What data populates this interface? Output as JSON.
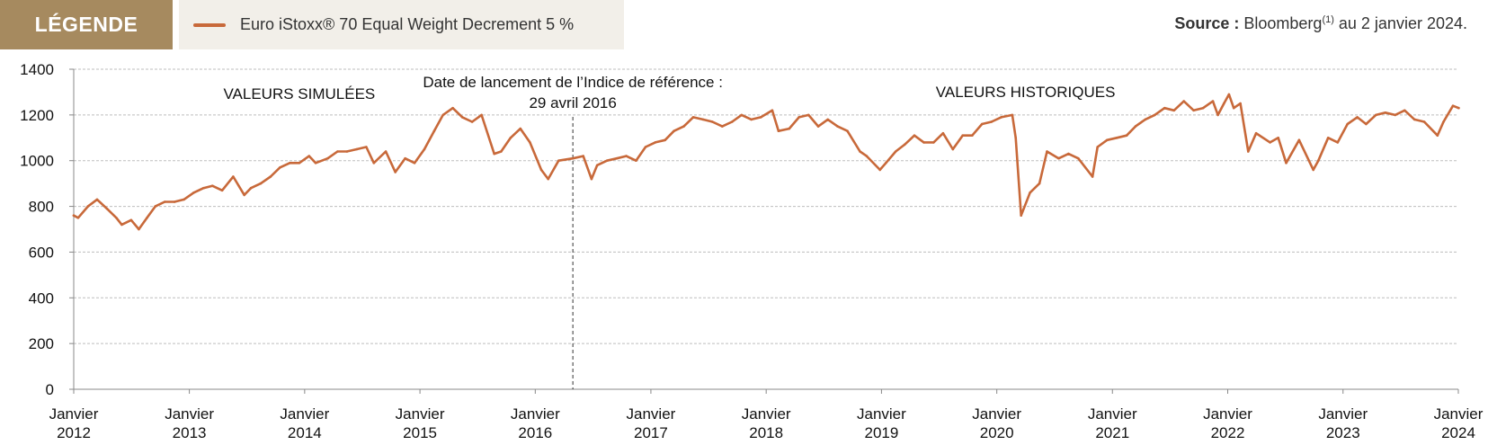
{
  "legend": {
    "title": "LÉGENDE",
    "entry": "Euro iStoxx® 70 Equal Weight Decrement 5 %"
  },
  "source": {
    "label": "Source :",
    "text1": " Bloomberg",
    "sup": "(1)",
    "text2": " au 2 janvier 2024."
  },
  "colors": {
    "series": "#c8693a",
    "legend_bg": "#a68a5f",
    "legend_entry_bg": "#f2efe9"
  },
  "chart_data": {
    "type": "line",
    "title": "",
    "xlabel": "",
    "ylabel": "",
    "ylim": [
      0,
      1400
    ],
    "yticks": [
      0,
      200,
      400,
      600,
      800,
      1000,
      1200,
      1400
    ],
    "grid": true,
    "legend_position": "top-left",
    "xticks": [
      {
        "year": 2012,
        "label1": "Janvier",
        "label2": "2012"
      },
      {
        "year": 2013,
        "label1": "Janvier",
        "label2": "2013"
      },
      {
        "year": 2014,
        "label1": "Janvier",
        "label2": "2014"
      },
      {
        "year": 2015,
        "label1": "Janvier",
        "label2": "2015"
      },
      {
        "year": 2016,
        "label1": "Janvier",
        "label2": "2016"
      },
      {
        "year": 2017,
        "label1": "Janvier",
        "label2": "2017"
      },
      {
        "year": 2018,
        "label1": "Janvier",
        "label2": "2018"
      },
      {
        "year": 2019,
        "label1": "Janvier",
        "label2": "2019"
      },
      {
        "year": 2020,
        "label1": "Janvier",
        "label2": "2020"
      },
      {
        "year": 2021,
        "label1": "Janvier",
        "label2": "2021"
      },
      {
        "year": 2022,
        "label1": "Janvier",
        "label2": "2022"
      },
      {
        "year": 2023,
        "label1": "Janvier",
        "label2": "2023"
      },
      {
        "year": 2024,
        "label1": "Janvier",
        "label2": "2024"
      }
    ],
    "annotations": {
      "simulated": "VALEURS SIMULÉES",
      "historical": "VALEURS HISTORIQUES",
      "launch_line1": "Date de lancement de l’Indice de référence :",
      "launch_line2": "29 avril  2016",
      "launch_date": "2016-04-29"
    },
    "series": [
      {
        "name": "Euro iStoxx® 70 Equal Weight Decrement 5 %",
        "points": [
          [
            "2012-01-01",
            760
          ],
          [
            "2012-01-15",
            750
          ],
          [
            "2012-02-15",
            800
          ],
          [
            "2012-03-15",
            830
          ],
          [
            "2012-04-15",
            790
          ],
          [
            "2012-05-15",
            750
          ],
          [
            "2012-06-01",
            720
          ],
          [
            "2012-07-01",
            740
          ],
          [
            "2012-07-25",
            700
          ],
          [
            "2012-08-20",
            750
          ],
          [
            "2012-09-15",
            800
          ],
          [
            "2012-10-15",
            820
          ],
          [
            "2012-11-15",
            820
          ],
          [
            "2012-12-15",
            830
          ],
          [
            "2013-01-15",
            860
          ],
          [
            "2013-02-15",
            880
          ],
          [
            "2013-03-15",
            890
          ],
          [
            "2013-04-15",
            870
          ],
          [
            "2013-05-20",
            930
          ],
          [
            "2013-06-24",
            850
          ],
          [
            "2013-07-15",
            880
          ],
          [
            "2013-08-15",
            900
          ],
          [
            "2013-09-15",
            930
          ],
          [
            "2013-10-15",
            970
          ],
          [
            "2013-11-15",
            990
          ],
          [
            "2013-12-15",
            990
          ],
          [
            "2014-01-15",
            1020
          ],
          [
            "2014-02-05",
            990
          ],
          [
            "2014-03-15",
            1010
          ],
          [
            "2014-04-15",
            1040
          ],
          [
            "2014-05-15",
            1040
          ],
          [
            "2014-06-15",
            1050
          ],
          [
            "2014-07-15",
            1060
          ],
          [
            "2014-08-08",
            990
          ],
          [
            "2014-09-15",
            1040
          ],
          [
            "2014-10-15",
            950
          ],
          [
            "2014-11-15",
            1010
          ],
          [
            "2014-12-15",
            990
          ],
          [
            "2015-01-15",
            1050
          ],
          [
            "2015-02-15",
            1130
          ],
          [
            "2015-03-15",
            1200
          ],
          [
            "2015-04-15",
            1230
          ],
          [
            "2015-05-15",
            1190
          ],
          [
            "2015-06-15",
            1170
          ],
          [
            "2015-07-15",
            1200
          ],
          [
            "2015-08-24",
            1030
          ],
          [
            "2015-09-15",
            1040
          ],
          [
            "2015-10-15",
            1100
          ],
          [
            "2015-11-15",
            1140
          ],
          [
            "2015-12-15",
            1080
          ],
          [
            "2016-01-20",
            960
          ],
          [
            "2016-02-11",
            920
          ],
          [
            "2016-03-15",
            1000
          ],
          [
            "2016-04-29",
            1010
          ],
          [
            "2016-06-01",
            1020
          ],
          [
            "2016-06-27",
            920
          ],
          [
            "2016-07-15",
            980
          ],
          [
            "2016-08-15",
            1000
          ],
          [
            "2016-09-15",
            1010
          ],
          [
            "2016-10-15",
            1020
          ],
          [
            "2016-11-15",
            1000
          ],
          [
            "2016-12-15",
            1060
          ],
          [
            "2017-01-15",
            1080
          ],
          [
            "2017-02-15",
            1090
          ],
          [
            "2017-03-15",
            1130
          ],
          [
            "2017-04-15",
            1150
          ],
          [
            "2017-05-15",
            1190
          ],
          [
            "2017-06-15",
            1180
          ],
          [
            "2017-07-15",
            1170
          ],
          [
            "2017-08-15",
            1150
          ],
          [
            "2017-09-15",
            1170
          ],
          [
            "2017-10-15",
            1200
          ],
          [
            "2017-11-15",
            1180
          ],
          [
            "2017-12-15",
            1190
          ],
          [
            "2018-01-20",
            1220
          ],
          [
            "2018-02-09",
            1130
          ],
          [
            "2018-03-15",
            1140
          ],
          [
            "2018-04-15",
            1190
          ],
          [
            "2018-05-15",
            1200
          ],
          [
            "2018-06-15",
            1150
          ],
          [
            "2018-07-15",
            1180
          ],
          [
            "2018-08-15",
            1150
          ],
          [
            "2018-09-15",
            1130
          ],
          [
            "2018-10-25",
            1040
          ],
          [
            "2018-11-15",
            1020
          ],
          [
            "2018-12-27",
            960
          ],
          [
            "2019-01-15",
            990
          ],
          [
            "2019-02-15",
            1040
          ],
          [
            "2019-03-15",
            1070
          ],
          [
            "2019-04-15",
            1110
          ],
          [
            "2019-05-15",
            1080
          ],
          [
            "2019-06-15",
            1080
          ],
          [
            "2019-07-15",
            1120
          ],
          [
            "2019-08-15",
            1050
          ],
          [
            "2019-09-15",
            1110
          ],
          [
            "2019-10-15",
            1110
          ],
          [
            "2019-11-15",
            1160
          ],
          [
            "2019-12-15",
            1170
          ],
          [
            "2020-01-15",
            1190
          ],
          [
            "2020-02-19",
            1200
          ],
          [
            "2020-03-01",
            1100
          ],
          [
            "2020-03-18",
            760
          ],
          [
            "2020-04-15",
            860
          ],
          [
            "2020-05-15",
            900
          ],
          [
            "2020-06-08",
            1040
          ],
          [
            "2020-07-15",
            1010
          ],
          [
            "2020-08-15",
            1030
          ],
          [
            "2020-09-15",
            1010
          ],
          [
            "2020-10-30",
            930
          ],
          [
            "2020-11-15",
            1060
          ],
          [
            "2020-12-15",
            1090
          ],
          [
            "2021-01-15",
            1100
          ],
          [
            "2021-02-15",
            1110
          ],
          [
            "2021-03-15",
            1150
          ],
          [
            "2021-04-15",
            1180
          ],
          [
            "2021-05-15",
            1200
          ],
          [
            "2021-06-15",
            1230
          ],
          [
            "2021-07-15",
            1220
          ],
          [
            "2021-08-15",
            1260
          ],
          [
            "2021-09-15",
            1220
          ],
          [
            "2021-10-15",
            1230
          ],
          [
            "2021-11-15",
            1260
          ],
          [
            "2021-12-01",
            1200
          ],
          [
            "2021-12-20",
            1250
          ],
          [
            "2022-01-05",
            1290
          ],
          [
            "2022-01-20",
            1230
          ],
          [
            "2022-02-10",
            1250
          ],
          [
            "2022-03-07",
            1040
          ],
          [
            "2022-04-01",
            1120
          ],
          [
            "2022-05-15",
            1080
          ],
          [
            "2022-06-10",
            1100
          ],
          [
            "2022-07-05",
            990
          ],
          [
            "2022-08-15",
            1090
          ],
          [
            "2022-09-29",
            960
          ],
          [
            "2022-10-15",
            1000
          ],
          [
            "2022-11-15",
            1100
          ],
          [
            "2022-12-15",
            1080
          ],
          [
            "2023-01-15",
            1160
          ],
          [
            "2023-02-15",
            1190
          ],
          [
            "2023-03-15",
            1160
          ],
          [
            "2023-04-15",
            1200
          ],
          [
            "2023-05-15",
            1210
          ],
          [
            "2023-06-15",
            1200
          ],
          [
            "2023-07-15",
            1220
          ],
          [
            "2023-08-15",
            1180
          ],
          [
            "2023-09-15",
            1170
          ],
          [
            "2023-10-27",
            1110
          ],
          [
            "2023-11-15",
            1170
          ],
          [
            "2023-12-15",
            1240
          ],
          [
            "2024-01-02",
            1230
          ]
        ]
      }
    ]
  }
}
